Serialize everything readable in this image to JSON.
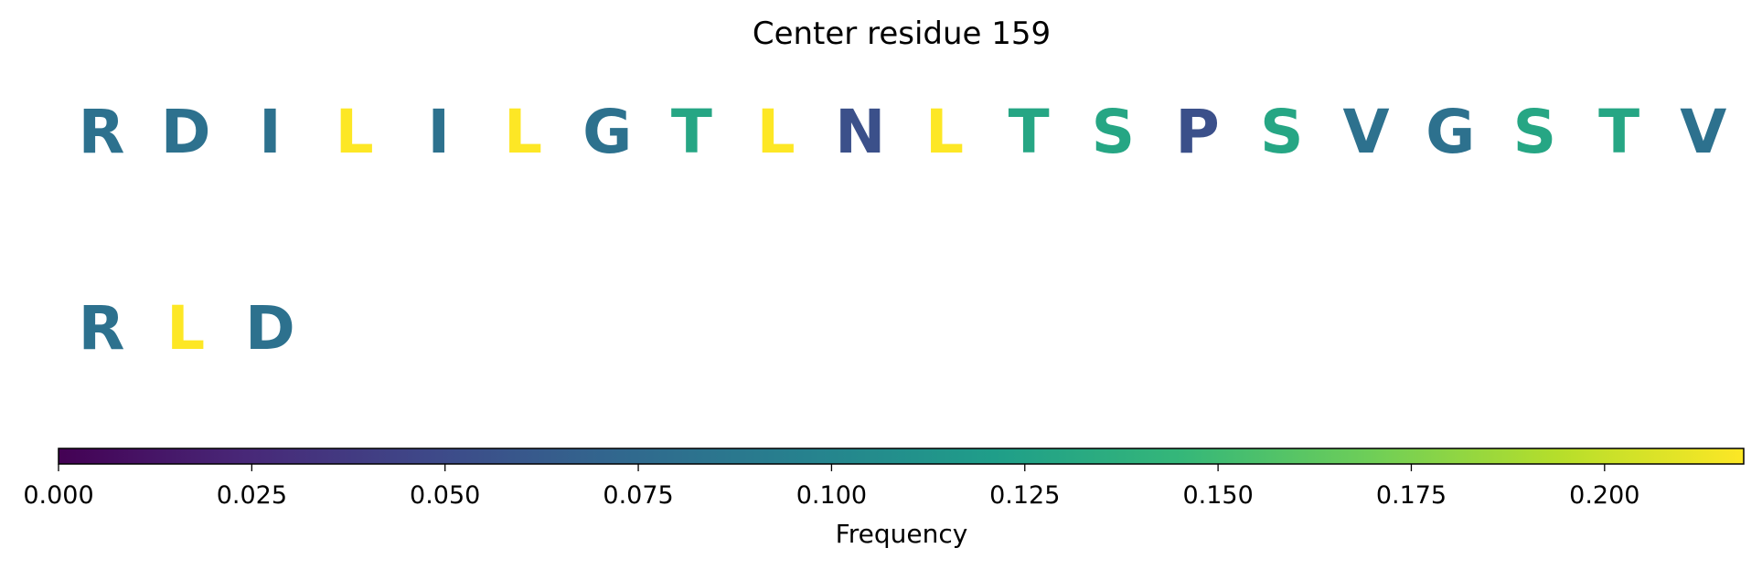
{
  "chart_data": {
    "type": "table",
    "title": "Center residue 159",
    "rows": [
      [
        {
          "letter": "R",
          "value": 0.081
        },
        {
          "letter": "D",
          "value": 0.081
        },
        {
          "letter": "I",
          "value": 0.081
        },
        {
          "letter": "L",
          "value": 0.218
        },
        {
          "letter": "I",
          "value": 0.081
        },
        {
          "letter": "L",
          "value": 0.218
        },
        {
          "letter": "G",
          "value": 0.081
        },
        {
          "letter": "T",
          "value": 0.129
        },
        {
          "letter": "L",
          "value": 0.218
        },
        {
          "letter": "N",
          "value": 0.054
        },
        {
          "letter": "L",
          "value": 0.218
        },
        {
          "letter": "T",
          "value": 0.129
        },
        {
          "letter": "S",
          "value": 0.129
        },
        {
          "letter": "P",
          "value": 0.054
        },
        {
          "letter": "S",
          "value": 0.129
        },
        {
          "letter": "V",
          "value": 0.081
        },
        {
          "letter": "G",
          "value": 0.081
        },
        {
          "letter": "S",
          "value": 0.129
        },
        {
          "letter": "T",
          "value": 0.129
        },
        {
          "letter": "V",
          "value": 0.081
        }
      ],
      [
        {
          "letter": "R",
          "value": 0.081
        },
        {
          "letter": "L",
          "value": 0.218
        },
        {
          "letter": "D",
          "value": 0.081
        }
      ]
    ],
    "colorbar": {
      "colormap": "viridis",
      "range": [
        0,
        0.218
      ],
      "ticks": [
        0.0,
        0.025,
        0.05,
        0.075,
        0.1,
        0.125,
        0.15,
        0.175,
        0.2
      ],
      "tick_labels": [
        "0.000",
        "0.025",
        "0.050",
        "0.075",
        "0.100",
        "0.125",
        "0.150",
        "0.175",
        "0.200"
      ],
      "label": "Frequency",
      "orientation": "horizontal"
    }
  }
}
